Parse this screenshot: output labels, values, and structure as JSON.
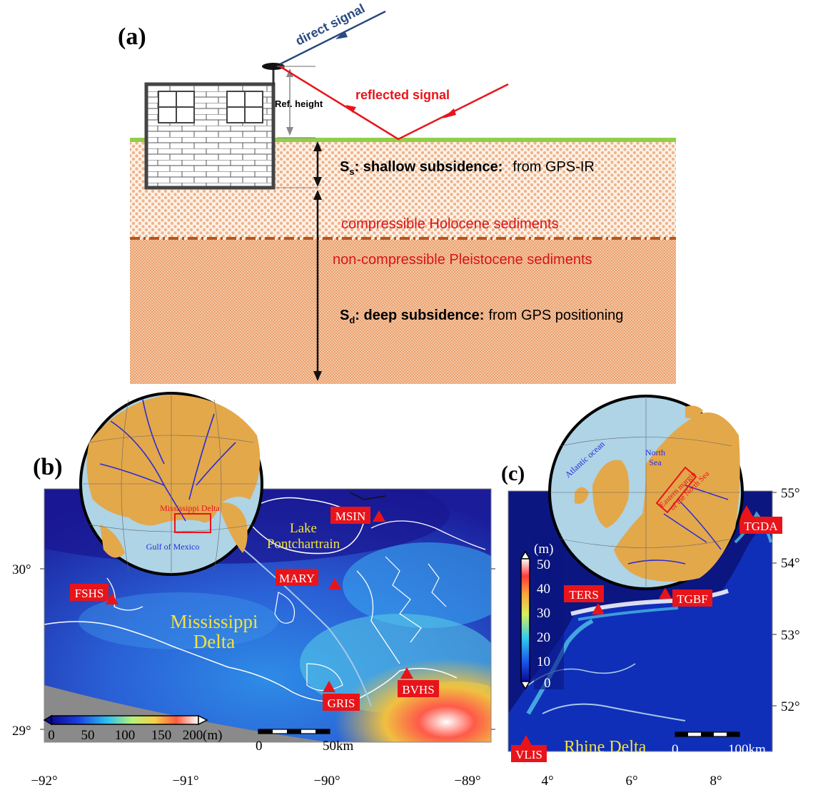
{
  "panel_a": {
    "label": "(a)",
    "direct_signal": "direct signal",
    "reflected_signal": "reflected signal",
    "ref_height": "Ref. height",
    "shallow": {
      "symbol": "S",
      "sub": "s",
      "text": ": shallow subsidence:",
      "source": "from GPS-IR"
    },
    "deep": {
      "symbol": "S",
      "sub": "d",
      "text": ": deep subsidence:",
      "source": "from GPS positioning"
    },
    "holocene": "compressible Holocene sediments",
    "pleistocene": "non-compressible Pleistocene sediments"
  },
  "panel_b": {
    "label": "(b)",
    "stations": [
      "MSIN",
      "MARY",
      "FSHS",
      "GRIS",
      "BVHS"
    ],
    "region_label": [
      "Mississippi",
      "Delta"
    ],
    "lake_label": [
      "Lake",
      "Pontchartrain"
    ],
    "globe_labels": {
      "delta": "Mississippi Delta",
      "gulf": "Gulf of Mexico"
    },
    "colorbar": {
      "ticks": [
        "0",
        "50",
        "100",
        "150",
        "200"
      ],
      "unit": "(m)",
      "range": [
        0,
        200
      ]
    },
    "scalebar": {
      "start": "0",
      "end": "50km"
    },
    "lat_ticks": [
      "30°",
      "29°"
    ],
    "lon_ticks": [
      "−92°",
      "−91°",
      "−90°",
      "−89°"
    ]
  },
  "panel_c": {
    "label": "(c)",
    "stations": [
      "TGDA",
      "TERS",
      "TGBF",
      "VLIS"
    ],
    "region_label": "Rhine Delta",
    "globe_labels": {
      "atlantic": "Atlantic ocean",
      "north_sea": [
        "North",
        "Sea"
      ],
      "margin": [
        "Eastern margin",
        "of the North Sea"
      ]
    },
    "colorbar": {
      "unit": "(m)",
      "ticks": [
        "50",
        "40",
        "30",
        "20",
        "10",
        "0"
      ],
      "range": [
        0,
        50
      ]
    },
    "scalebar": {
      "start": "0",
      "end": "100km"
    },
    "lat_ticks": [
      "55°",
      "54°",
      "53°",
      "52°"
    ],
    "lon_ticks": [
      "4°",
      "6°",
      "8°"
    ]
  },
  "colors": {
    "station": "#e8141a",
    "ocean_deep": "#0b1680",
    "land": "#e3a84a",
    "globe_sea": "#aed4e6",
    "yellow_label": "#f4e23a",
    "red_text": "#d8141a",
    "blue_arrow": "#2a4a80"
  }
}
